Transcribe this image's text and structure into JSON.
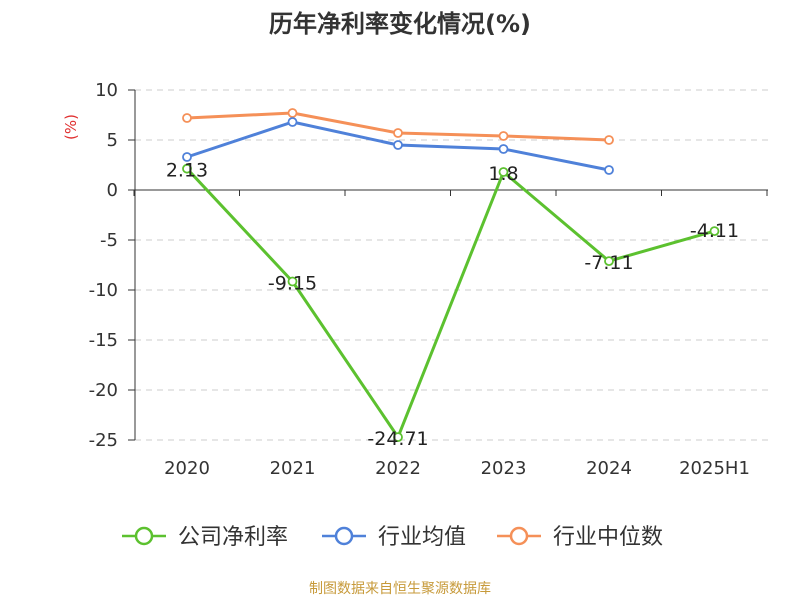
{
  "chart_data": {
    "type": "line",
    "title": "历年净利率变化情况(%)",
    "ylabel": "(%)",
    "categories": [
      "2020",
      "2021",
      "2022",
      "2023",
      "2024",
      "2025H1"
    ],
    "ylim": [
      -25,
      10
    ],
    "yticks": [
      10,
      5,
      0,
      -5,
      -10,
      -15,
      -20,
      -25
    ],
    "grid": true,
    "legend_position": "bottom",
    "series": [
      {
        "name": "公司净利率",
        "color": "#5cc12f",
        "values": [
          2.13,
          -9.15,
          -24.71,
          1.8,
          -7.11,
          -4.11
        ],
        "labels": [
          "2.13",
          "-9.15",
          "-24.71",
          "1.8",
          "-7.11",
          "-4.11"
        ]
      },
      {
        "name": "行业均值",
        "color": "#4f81d9",
        "values": [
          3.3,
          6.8,
          4.5,
          4.1,
          2.0,
          null
        ]
      },
      {
        "name": "行业中位数",
        "color": "#f59058",
        "values": [
          7.2,
          7.7,
          5.7,
          5.4,
          5.0,
          null
        ]
      }
    ]
  },
  "source": {
    "text": "制图数据来自恒生聚源数据库",
    "color": "#c79a3a"
  },
  "colors": {
    "axis": "#333333",
    "grid": "#cccccc",
    "ylabel": "#e03030"
  }
}
